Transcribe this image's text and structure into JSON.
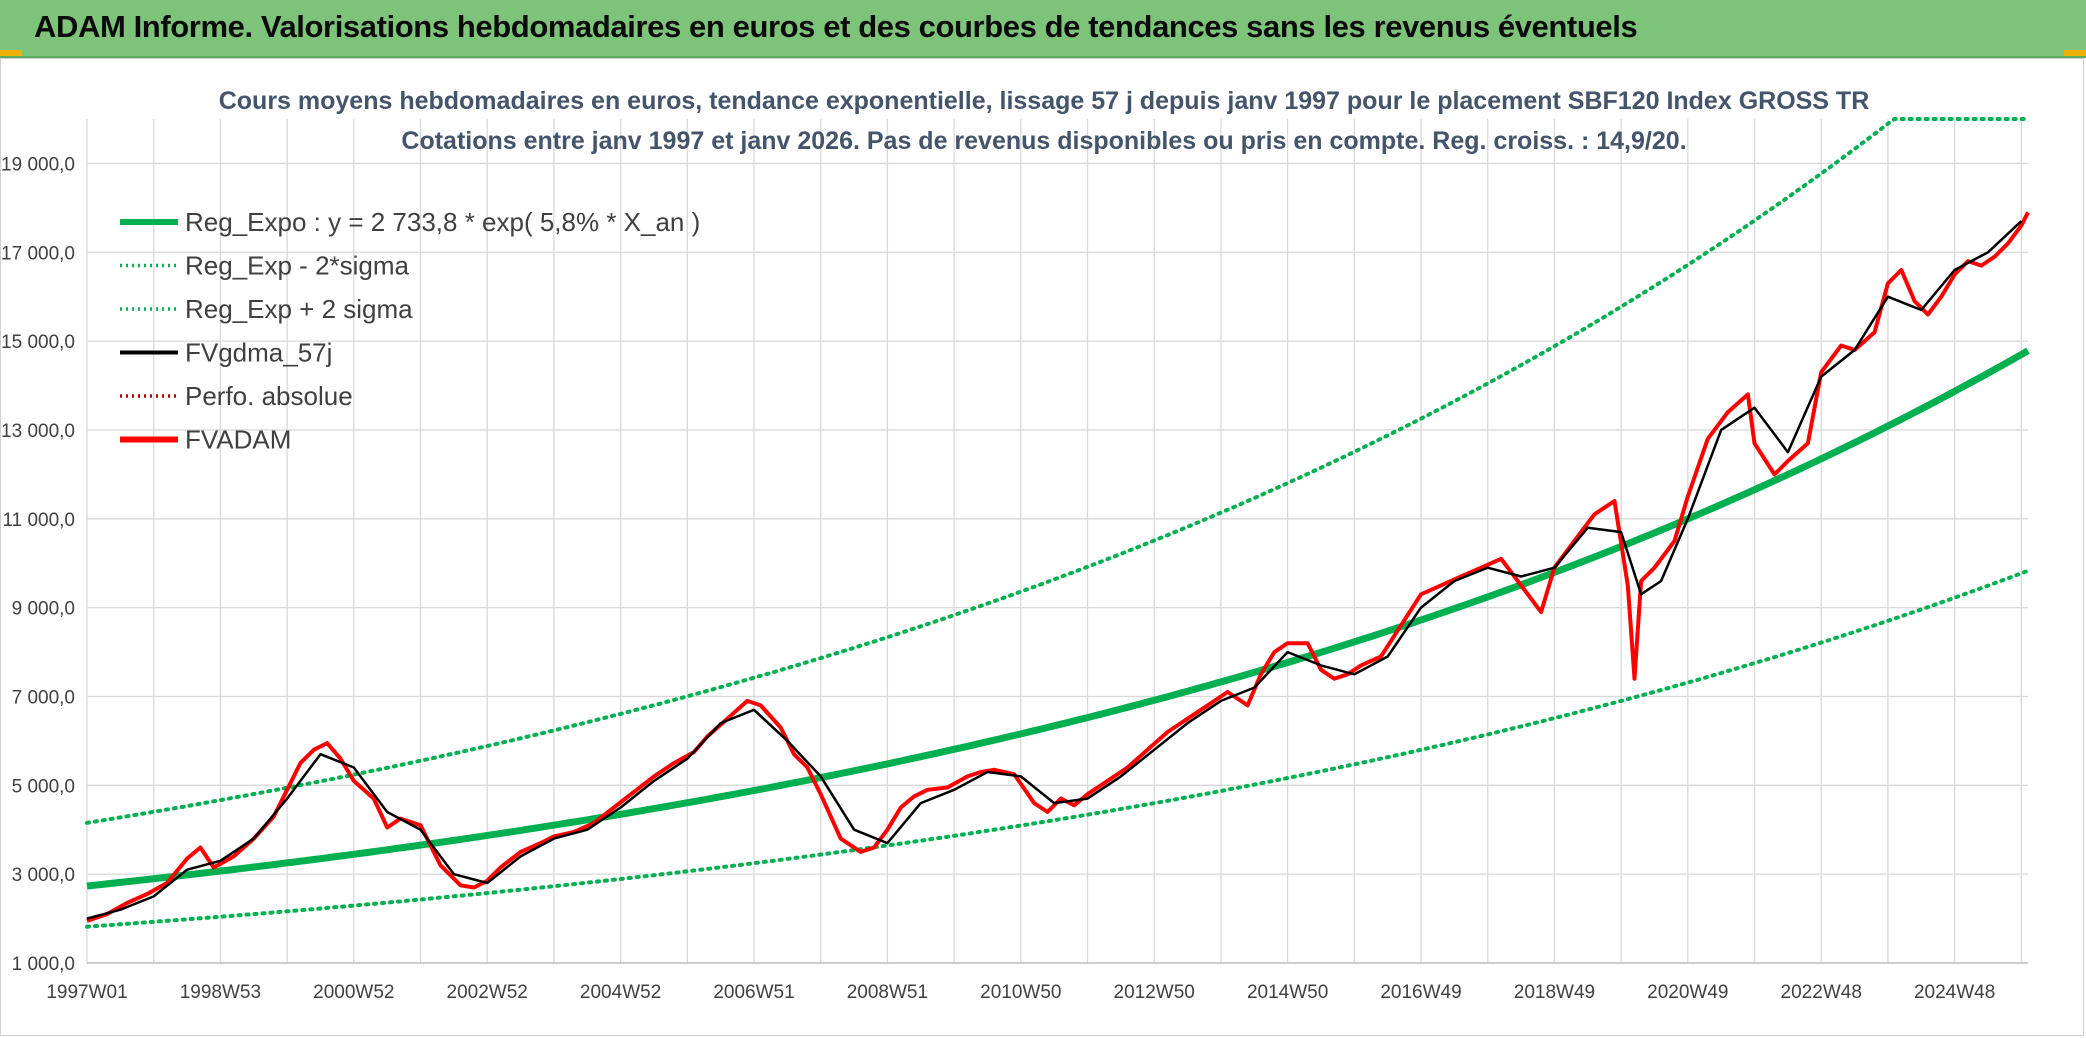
{
  "header": {
    "title": "ADAM Informe. Valorisations hebdomadaires en euros et des courbes de tendances sans les revenus éventuels"
  },
  "colors": {
    "header_bg": "#7dc47a",
    "trend": "#00b050",
    "series": "#ff0000",
    "smooth": "#000000",
    "title": "#44546a",
    "grid": "#d9d9d9"
  },
  "chart_data": {
    "type": "line",
    "title": "Cours moyens hebdomadaires en euros, tendance exponentielle, lissage 57 j depuis janv 1997 pour le placement SBF120 Index GROSS TR",
    "subtitle": "Cotations entre janv 1997 et janv 2026. Pas de revenus disponibles ou pris en compte. Reg. croiss. : 14,9/20.",
    "xlabel": "",
    "ylabel": "",
    "xlim": [
      1997.0,
      2026.1
    ],
    "ylim": [
      1000,
      20000
    ],
    "y_ticks": [
      1000,
      3000,
      5000,
      7000,
      9000,
      11000,
      13000,
      15000,
      17000,
      19000
    ],
    "y_tick_labels": [
      "1 000,0",
      "3 000,0",
      "5 000,0",
      "7 000,0",
      "9 000,0",
      "11 000,0",
      "13 000,0",
      "15 000,0",
      "17 000,0",
      "19 000,0"
    ],
    "x_ticks": [
      1997.0,
      1999.0,
      2001.0,
      2003.0,
      2005.0,
      2007.0,
      2009.0,
      2011.0,
      2013.0,
      2015.0,
      2017.0,
      2019.0,
      2021.0,
      2023.0,
      2025.0
    ],
    "x_tick_labels": [
      "1997W01",
      "1998W53",
      "2000W52",
      "2002W52",
      "2004W52",
      "2006W51",
      "2008W51",
      "2010W50",
      "2012W50",
      "2014W50",
      "2016W49",
      "2018W49",
      "2020W49",
      "2022W48",
      "2024W48"
    ],
    "legend_position": "top-left",
    "legend": [
      {
        "label": "Reg_Expo : y = 2 733,8 * exp( 5,8% *  X_an )",
        "color": "#00b050",
        "style": "solid-thick"
      },
      {
        "label": "Reg_Exp - 2*sigma",
        "color": "#00b050",
        "style": "dotted"
      },
      {
        "label": "Reg_Exp + 2 sigma",
        "color": "#00b050",
        "style": "dotted"
      },
      {
        "label": "FVgdma_57j",
        "color": "#000000",
        "style": "solid"
      },
      {
        "label": "Perfo. absolue",
        "color": "#c00000",
        "style": "dotted"
      },
      {
        "label": "FVADAM",
        "color": "#ff0000",
        "style": "solid-thick"
      }
    ],
    "regression": {
      "a": 2733.8,
      "growth_rate": 0.058,
      "lower_factor": 0.665,
      "upper_factor": 1.52,
      "upper_cap": 20000
    },
    "series": [
      {
        "name": "FVADAM",
        "x": [
          1997.0,
          1997.3,
          1997.6,
          1997.9,
          1998.2,
          1998.5,
          1998.7,
          1998.9,
          1999.2,
          1999.5,
          1999.8,
          2000.0,
          2000.2,
          2000.4,
          2000.6,
          2000.8,
          2001.0,
          2001.3,
          2001.5,
          2001.7,
          2002.0,
          2002.3,
          2002.6,
          2002.8,
          2003.0,
          2003.2,
          2003.5,
          2003.8,
          2004.0,
          2004.3,
          2004.6,
          2004.9,
          2005.2,
          2005.5,
          2005.8,
          2006.1,
          2006.3,
          2006.6,
          2006.9,
          2007.1,
          2007.4,
          2007.6,
          2007.8,
          2008.0,
          2008.3,
          2008.6,
          2008.8,
          2009.0,
          2009.2,
          2009.4,
          2009.6,
          2009.9,
          2010.2,
          2010.4,
          2010.6,
          2010.9,
          2011.2,
          2011.4,
          2011.6,
          2011.8,
          2012.0,
          2012.3,
          2012.6,
          2012.9,
          2013.2,
          2013.5,
          2013.8,
          2014.1,
          2014.4,
          2014.6,
          2014.8,
          2015.0,
          2015.3,
          2015.5,
          2015.7,
          2015.9,
          2016.1,
          2016.4,
          2016.7,
          2017.0,
          2017.3,
          2017.6,
          2017.9,
          2018.2,
          2018.5,
          2018.8,
          2019.0,
          2019.3,
          2019.6,
          2019.9,
          2020.1,
          2020.2,
          2020.3,
          2020.5,
          2020.8,
          2021.0,
          2021.3,
          2021.6,
          2021.9,
          2022.0,
          2022.3,
          2022.5,
          2022.8,
          2023.0,
          2023.3,
          2023.5,
          2023.8,
          2024.0,
          2024.2,
          2024.4,
          2024.6,
          2024.8,
          2025.0,
          2025.2,
          2025.4,
          2025.6,
          2025.8,
          2026.0,
          2026.1
        ],
        "values": [
          1950,
          2100,
          2350,
          2550,
          2800,
          3350,
          3600,
          3150,
          3400,
          3800,
          4300,
          4900,
          5500,
          5800,
          5950,
          5600,
          5100,
          4700,
          4050,
          4250,
          4100,
          3200,
          2750,
          2700,
          2850,
          3150,
          3500,
          3700,
          3850,
          3950,
          4150,
          4500,
          4850,
          5200,
          5500,
          5750,
          6100,
          6500,
          6900,
          6800,
          6300,
          5700,
          5400,
          4800,
          3800,
          3500,
          3600,
          4000,
          4500,
          4750,
          4900,
          4950,
          5200,
          5300,
          5350,
          5250,
          4600,
          4400,
          4700,
          4550,
          4800,
          5100,
          5400,
          5800,
          6200,
          6500,
          6800,
          7100,
          6800,
          7500,
          8000,
          8200,
          8200,
          7600,
          7400,
          7500,
          7700,
          7900,
          8600,
          9300,
          9500,
          9700,
          9900,
          10100,
          9500,
          8900,
          9900,
          10500,
          11100,
          11400,
          9500,
          7400,
          9600,
          9900,
          10500,
          11500,
          12800,
          13400,
          13800,
          12700,
          12000,
          12300,
          12700,
          14300,
          14900,
          14800,
          15200,
          16300,
          16600,
          15900,
          15600,
          16000,
          16500,
          16800,
          16700,
          16900,
          17200,
          17600,
          17900
        ]
      },
      {
        "name": "FVgdma_57j",
        "x": [
          1997.0,
          1997.5,
          1998.0,
          1998.5,
          1999.0,
          1999.5,
          2000.0,
          2000.5,
          2001.0,
          2001.5,
          2002.0,
          2002.5,
          2003.0,
          2003.5,
          2004.0,
          2004.5,
          2005.0,
          2005.5,
          2006.0,
          2006.5,
          2007.0,
          2007.5,
          2008.0,
          2008.5,
          2009.0,
          2009.5,
          2010.0,
          2010.5,
          2011.0,
          2011.5,
          2012.0,
          2012.5,
          2013.0,
          2013.5,
          2014.0,
          2014.5,
          2015.0,
          2015.5,
          2016.0,
          2016.5,
          2017.0,
          2017.5,
          2018.0,
          2018.5,
          2019.0,
          2019.5,
          2020.0,
          2020.3,
          2020.6,
          2021.0,
          2021.5,
          2022.0,
          2022.5,
          2023.0,
          2023.5,
          2024.0,
          2024.5,
          2025.0,
          2025.5,
          2026.0
        ],
        "values": [
          2000,
          2200,
          2500,
          3100,
          3300,
          3800,
          4700,
          5700,
          5400,
          4400,
          4000,
          3000,
          2800,
          3400,
          3800,
          4000,
          4500,
          5100,
          5600,
          6400,
          6700,
          6000,
          5200,
          4000,
          3700,
          4600,
          4900,
          5300,
          5200,
          4600,
          4700,
          5200,
          5800,
          6400,
          6900,
          7200,
          8000,
          7700,
          7500,
          7900,
          9000,
          9600,
          9900,
          9700,
          9900,
          10800,
          10700,
          9300,
          9600,
          11000,
          13000,
          13500,
          12500,
          14200,
          14800,
          16000,
          15700,
          16600,
          17000,
          17700
        ]
      }
    ]
  }
}
